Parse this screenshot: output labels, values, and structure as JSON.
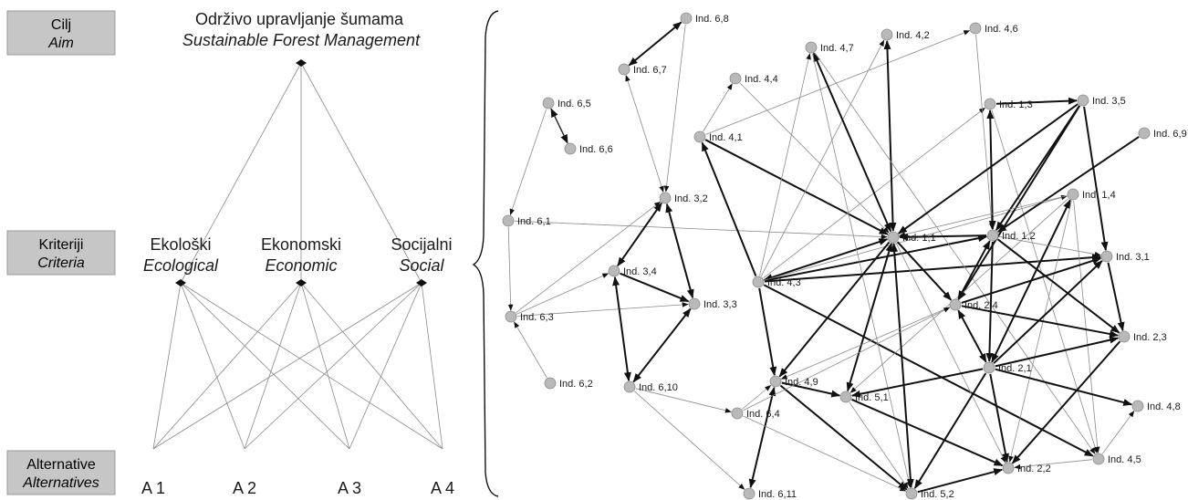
{
  "levels": [
    {
      "label": "Cilj",
      "label_en": "Aim"
    },
    {
      "label": "Kriteriji",
      "label_en": "Criteria"
    },
    {
      "label": "Alternative",
      "label_en": "Alternatives"
    }
  ],
  "goal": {
    "label": "Održivo upravljanje šumama",
    "label_en": "Sustainable Forest Management"
  },
  "criteria": [
    {
      "label": "Ekološki",
      "label_en": "Ecological"
    },
    {
      "label": "Ekonomski",
      "label_en": "Economic"
    },
    {
      "label": "Socijalni",
      "label_en": "Social"
    }
  ],
  "alternatives": [
    "A 1",
    "A 2",
    "A 3",
    "A 4"
  ],
  "network": {
    "nodes": [
      {
        "id": "6,8",
        "label": "Ind. 6,8"
      },
      {
        "id": "6,7",
        "label": "Ind. 6,7"
      },
      {
        "id": "6,5",
        "label": "Ind. 6,5"
      },
      {
        "id": "6,6",
        "label": "Ind. 6,6"
      },
      {
        "id": "6,1",
        "label": "Ind. 6,1"
      },
      {
        "id": "6,3",
        "label": "Ind. 6,3"
      },
      {
        "id": "6,2",
        "label": "Ind. 6,2"
      },
      {
        "id": "3,2",
        "label": "Ind. 3,2"
      },
      {
        "id": "3,4",
        "label": "Ind. 3,4"
      },
      {
        "id": "3,3",
        "label": "Ind. 3,3"
      },
      {
        "id": "6,10",
        "label": "Ind. 6,10"
      },
      {
        "id": "6,4",
        "label": "Ind. 6,4"
      },
      {
        "id": "6,11",
        "label": "Ind. 6,11"
      },
      {
        "id": "4,7",
        "label": "Ind. 4,7"
      },
      {
        "id": "4,2",
        "label": "Ind. 4,2"
      },
      {
        "id": "4,6",
        "label": "Ind. 4,6"
      },
      {
        "id": "4,4",
        "label": "Ind. 4,4"
      },
      {
        "id": "4,1",
        "label": "Ind. 4,1"
      },
      {
        "id": "1,3",
        "label": "Ind. 1,3"
      },
      {
        "id": "3,5",
        "label": "Ind. 3,5"
      },
      {
        "id": "6,9",
        "label": "Ind. 6,9"
      },
      {
        "id": "1,4",
        "label": "Ind. 1,4"
      },
      {
        "id": "1,1",
        "label": "Ind. 1,1"
      },
      {
        "id": "1,2",
        "label": "Ind. 1,2"
      },
      {
        "id": "3,1",
        "label": "Ind. 3,1"
      },
      {
        "id": "4,3",
        "label": "Ind. 4,3"
      },
      {
        "id": "2,4",
        "label": "Ind. 2,4"
      },
      {
        "id": "2,3",
        "label": "Ind. 2,3"
      },
      {
        "id": "4,9",
        "label": "Ind. 4,9"
      },
      {
        "id": "5,1",
        "label": "Ind. 5,1"
      },
      {
        "id": "2,1",
        "label": "Ind. 2,1"
      },
      {
        "id": "4,8",
        "label": "Ind. 4,8"
      },
      {
        "id": "4,5",
        "label": "Ind. 4,5"
      },
      {
        "id": "2,2",
        "label": "Ind. 2,2"
      },
      {
        "id": "5,2",
        "label": "Ind. 5,2"
      }
    ],
    "edges": [
      {
        "from": "6,7",
        "to": "6,8",
        "weight": "strong",
        "arrow": "both"
      },
      {
        "from": "6,5",
        "to": "6,6",
        "weight": "medium",
        "arrow": "both"
      },
      {
        "from": "6,7",
        "to": "3,2",
        "weight": "thin",
        "arrow": "both"
      },
      {
        "from": "6,8",
        "to": "3,2",
        "weight": "thin",
        "arrow": "end"
      },
      {
        "from": "6,5",
        "to": "6,1",
        "weight": "thin",
        "arrow": "end"
      },
      {
        "from": "6,1",
        "to": "6,3",
        "weight": "thin",
        "arrow": "end"
      },
      {
        "from": "6,1",
        "to": "1,1",
        "weight": "thin",
        "arrow": "end"
      },
      {
        "from": "6,2",
        "to": "6,3",
        "weight": "thin",
        "arrow": "end"
      },
      {
        "from": "6,3",
        "to": "3,4",
        "weight": "thin",
        "arrow": "end"
      },
      {
        "from": "6,3",
        "to": "3,3",
        "weight": "thin",
        "arrow": "end"
      },
      {
        "from": "6,3",
        "to": "3,2",
        "weight": "thin",
        "arrow": "end"
      },
      {
        "from": "3,2",
        "to": "3,4",
        "weight": "strong",
        "arrow": "both"
      },
      {
        "from": "3,2",
        "to": "3,3",
        "weight": "strong",
        "arrow": "both"
      },
      {
        "from": "3,4",
        "to": "3,3",
        "weight": "strong",
        "arrow": "end"
      },
      {
        "from": "3,4",
        "to": "6,10",
        "weight": "strong",
        "arrow": "both"
      },
      {
        "from": "3,3",
        "to": "6,10",
        "weight": "strong",
        "arrow": "both"
      },
      {
        "from": "6,10",
        "to": "6,4",
        "weight": "thin",
        "arrow": "end"
      },
      {
        "from": "6,10",
        "to": "6,11",
        "weight": "thin",
        "arrow": "end"
      },
      {
        "from": "6,4",
        "to": "4,9",
        "weight": "thin",
        "arrow": "end"
      },
      {
        "from": "4,1",
        "to": "4,4",
        "weight": "thin",
        "arrow": "end"
      },
      {
        "from": "4,1",
        "to": "1,1",
        "weight": "strong",
        "arrow": "end"
      },
      {
        "from": "4,4",
        "to": "1,1",
        "weight": "thin",
        "arrow": "end"
      },
      {
        "from": "4,1",
        "to": "4,6",
        "weight": "thin",
        "arrow": "end"
      },
      {
        "from": "4,3",
        "to": "4,1",
        "weight": "strong",
        "arrow": "end"
      },
      {
        "from": "4,3",
        "to": "4,7",
        "weight": "thin",
        "arrow": "end"
      },
      {
        "from": "4,3",
        "to": "4,2",
        "weight": "thin",
        "arrow": "end"
      },
      {
        "from": "4,3",
        "to": "1,1",
        "weight": "strong",
        "arrow": "both"
      },
      {
        "from": "4,3",
        "to": "1,2",
        "weight": "strong",
        "arrow": "end"
      },
      {
        "from": "4,3",
        "to": "3,1",
        "weight": "strong",
        "arrow": "end"
      },
      {
        "from": "4,3",
        "to": "1,3",
        "weight": "thin",
        "arrow": "end"
      },
      {
        "from": "4,3",
        "to": "1,4",
        "weight": "thin",
        "arrow": "end"
      },
      {
        "from": "4,3",
        "to": "4,9",
        "weight": "strong",
        "arrow": "end"
      },
      {
        "from": "4,3",
        "to": "4,5",
        "weight": "strong",
        "arrow": "end"
      },
      {
        "from": "4,7",
        "to": "1,1",
        "weight": "strong",
        "arrow": "both"
      },
      {
        "from": "4,2",
        "to": "1,1",
        "weight": "strong",
        "arrow": "both"
      },
      {
        "from": "4,6",
        "to": "1,2",
        "weight": "thin",
        "arrow": "end"
      },
      {
        "from": "4,7",
        "to": "5,2",
        "weight": "thin",
        "arrow": "end"
      },
      {
        "from": "4,7",
        "to": "4,5",
        "weight": "thin",
        "arrow": "end"
      },
      {
        "from": "1,3",
        "to": "3,5",
        "weight": "strong",
        "arrow": "end"
      },
      {
        "from": "1,3",
        "to": "1,2",
        "weight": "strong",
        "arrow": "both"
      },
      {
        "from": "1,3",
        "to": "4,5",
        "weight": "thin",
        "arrow": "end"
      },
      {
        "from": "3,5",
        "to": "1,1",
        "weight": "strong",
        "arrow": "end"
      },
      {
        "from": "3,5",
        "to": "1,2",
        "weight": "strong",
        "arrow": "end"
      },
      {
        "from": "3,5",
        "to": "3,1",
        "weight": "strong",
        "arrow": "end"
      },
      {
        "from": "3,5",
        "to": "2,4",
        "weight": "strong",
        "arrow": "end"
      },
      {
        "from": "6,9",
        "to": "1,2",
        "weight": "strong",
        "arrow": "end"
      },
      {
        "from": "1,4",
        "to": "1,1",
        "weight": "thin",
        "arrow": "end"
      },
      {
        "from": "1,4",
        "to": "2,1",
        "weight": "strong",
        "arrow": "both"
      },
      {
        "from": "1,4",
        "to": "5,1",
        "weight": "thin",
        "arrow": "end"
      },
      {
        "from": "1,4",
        "to": "2,2",
        "weight": "thin",
        "arrow": "end"
      },
      {
        "from": "1,4",
        "to": "4,5",
        "weight": "thin",
        "arrow": "end"
      },
      {
        "from": "1,2",
        "to": "1,1",
        "weight": "strong",
        "arrow": "end"
      },
      {
        "from": "1,2",
        "to": "3,1",
        "weight": "thin",
        "arrow": "end"
      },
      {
        "from": "1,2",
        "to": "2,4",
        "weight": "strong",
        "arrow": "both"
      },
      {
        "from": "1,2",
        "to": "2,3",
        "weight": "strong",
        "arrow": "end"
      },
      {
        "from": "1,2",
        "to": "2,1",
        "weight": "strong",
        "arrow": "end"
      },
      {
        "from": "1,1",
        "to": "2,4",
        "weight": "strong",
        "arrow": "end"
      },
      {
        "from": "1,1",
        "to": "5,1",
        "weight": "strong",
        "arrow": "both"
      },
      {
        "from": "1,1",
        "to": "4,9",
        "weight": "strong",
        "arrow": "end"
      },
      {
        "from": "1,1",
        "to": "5,2",
        "weight": "strong",
        "arrow": "both"
      },
      {
        "from": "1,1",
        "to": "2,2",
        "weight": "thin",
        "arrow": "end"
      },
      {
        "from": "3,1",
        "to": "2,3",
        "weight": "strong",
        "arrow": "end"
      },
      {
        "from": "2,4",
        "to": "3,1",
        "weight": "strong",
        "arrow": "end"
      },
      {
        "from": "2,4",
        "to": "2,3",
        "weight": "strong",
        "arrow": "end"
      },
      {
        "from": "2,4",
        "to": "2,1",
        "weight": "strong",
        "arrow": "both"
      },
      {
        "from": "2,4",
        "to": "4,9",
        "weight": "thin",
        "arrow": "end"
      },
      {
        "from": "2,1",
        "to": "3,1",
        "weight": "strong",
        "arrow": "end"
      },
      {
        "from": "2,1",
        "to": "2,3",
        "weight": "strong",
        "arrow": "end"
      },
      {
        "from": "2,1",
        "to": "4,8",
        "weight": "strong",
        "arrow": "end"
      },
      {
        "from": "2,1",
        "to": "5,1",
        "weight": "strong",
        "arrow": "end"
      },
      {
        "from": "2,1",
        "to": "5,2",
        "weight": "strong",
        "arrow": "end"
      },
      {
        "from": "2,1",
        "to": "2,2",
        "weight": "strong",
        "arrow": "end"
      },
      {
        "from": "2,3",
        "to": "2,2",
        "weight": "strong",
        "arrow": "end"
      },
      {
        "from": "4,9",
        "to": "5,1",
        "weight": "strong",
        "arrow": "end"
      },
      {
        "from": "4,9",
        "to": "5,2",
        "weight": "strong",
        "arrow": "end"
      },
      {
        "from": "4,9",
        "to": "6,11",
        "weight": "strong",
        "arrow": "both"
      },
      {
        "from": "5,1",
        "to": "2,2",
        "weight": "strong",
        "arrow": "end"
      },
      {
        "from": "5,1",
        "to": "5,2",
        "weight": "thin",
        "arrow": "end"
      },
      {
        "from": "5,2",
        "to": "2,2",
        "weight": "strong",
        "arrow": "end"
      },
      {
        "from": "4,5",
        "to": "2,2",
        "weight": "thin",
        "arrow": "end"
      },
      {
        "from": "4,5",
        "to": "4,8",
        "weight": "thin",
        "arrow": "end"
      },
      {
        "from": "6,4",
        "to": "5,2",
        "weight": "thin",
        "arrow": "end"
      },
      {
        "from": "6,4",
        "to": "2,4",
        "weight": "thin",
        "arrow": "end"
      }
    ]
  },
  "colors": {
    "level_box": "#c6c6c6",
    "node_fill": "#b9b9b9",
    "node_stroke": "#8a8a8a",
    "line": "#444444"
  }
}
